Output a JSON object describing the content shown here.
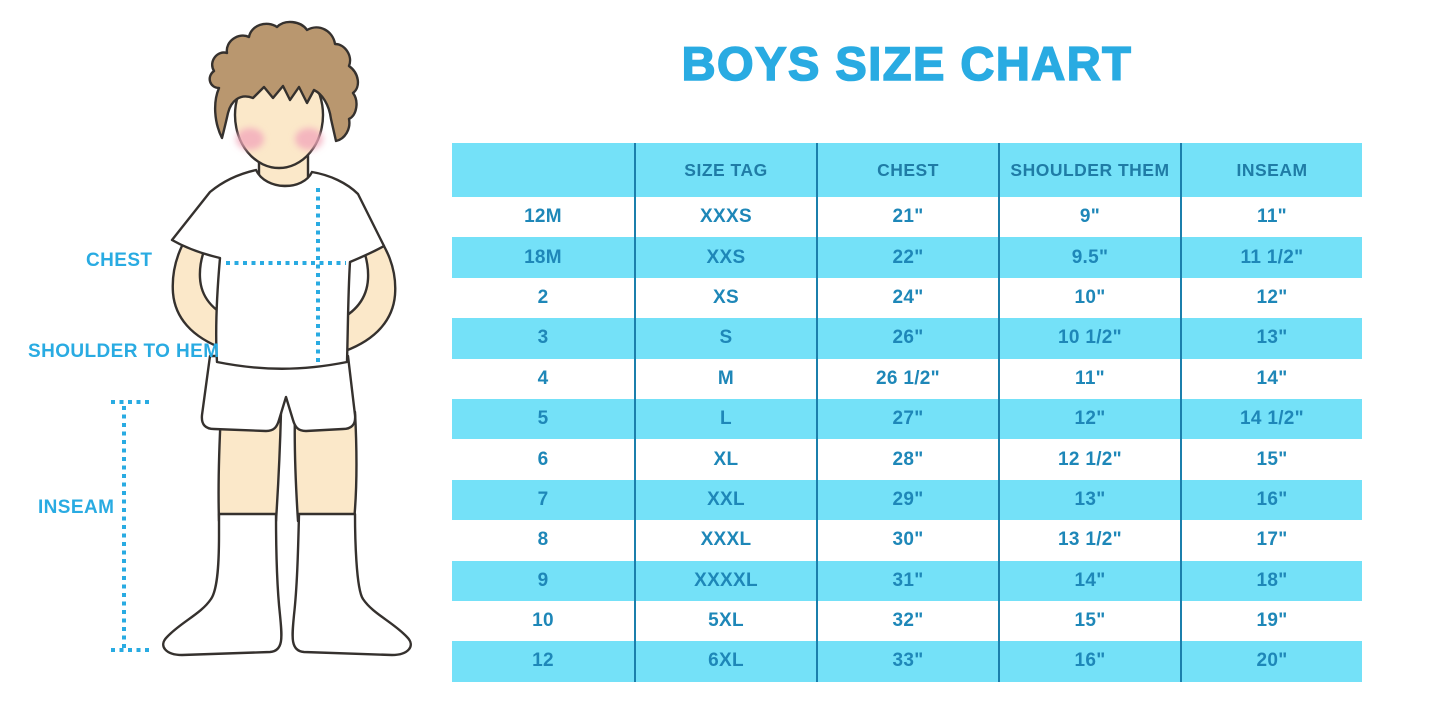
{
  "title": "BOYS SIZE CHART",
  "colors": {
    "accent": "#29ABE2",
    "row_blue": "#74E1F8",
    "header_text": "#1F7CA6",
    "cell_text": "#1E87B8",
    "divider": "#1B7FAC",
    "skin": "#FBE8C9",
    "hair": "#B9976F",
    "blush": "#F2A9BC",
    "outline": "#35312E"
  },
  "diagram": {
    "chest_label": "CHEST",
    "shoulder_to_hem_label": "SHOULDER TO HEM",
    "inseam_label": "INSEAM"
  },
  "chart_data": {
    "type": "table",
    "title": "BOYS SIZE CHART",
    "headers": [
      "",
      "SIZE TAG",
      "CHEST",
      "SHOULDER THEM",
      "INSEAM"
    ],
    "rows": [
      [
        "12M",
        "XXXS",
        "21\"",
        "9\"",
        "11\""
      ],
      [
        "18M",
        "XXS",
        "22\"",
        "9.5\"",
        "11 1/2\""
      ],
      [
        "2",
        "XS",
        "24\"",
        "10\"",
        "12\""
      ],
      [
        "3",
        "S",
        "26\"",
        "10 1/2\"",
        "13\""
      ],
      [
        "4",
        "M",
        "26 1/2\"",
        "11\"",
        "14\""
      ],
      [
        "5",
        "L",
        "27\"",
        "12\"",
        "14 1/2\""
      ],
      [
        "6",
        "XL",
        "28\"",
        "12 1/2\"",
        "15\""
      ],
      [
        "7",
        "XXL",
        "29\"",
        "13\"",
        "16\""
      ],
      [
        "8",
        "XXXL",
        "30\"",
        "13 1/2\"",
        "17\""
      ],
      [
        "9",
        "XXXXL",
        "31\"",
        "14\"",
        "18\""
      ],
      [
        "10",
        "5XL",
        "32\"",
        "15\"",
        "19\""
      ],
      [
        "12",
        "6XL",
        "33\"",
        "16\"",
        "20\""
      ]
    ],
    "layout": {
      "header_background": "light blue",
      "body_row_shading": "alternating white / light blue starting with white",
      "grid": "vertical column dividers only, no outer border"
    }
  }
}
